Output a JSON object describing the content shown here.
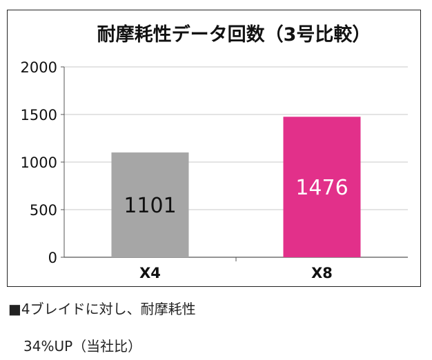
{
  "chart_data": {
    "type": "bar",
    "title": "耐摩耗性データ回数（3号比較）",
    "categories": [
      "X4",
      "X8"
    ],
    "values": [
      1101,
      1476
    ],
    "data_labels": [
      "1101",
      "1476"
    ],
    "bar_colors": [
      "#a6a6a6",
      "#e2308a"
    ],
    "label_colors": [
      "#111111",
      "#ffffff"
    ],
    "ylim": [
      0,
      2000
    ],
    "yticks": [
      "0",
      "500",
      "1000",
      "1500",
      "2000"
    ],
    "grid": true,
    "xlabel": "",
    "ylabel": ""
  },
  "caption": {
    "line1": "■4ブレイドに対し、耐摩耗性",
    "line2": "34%UP（当社比）"
  }
}
